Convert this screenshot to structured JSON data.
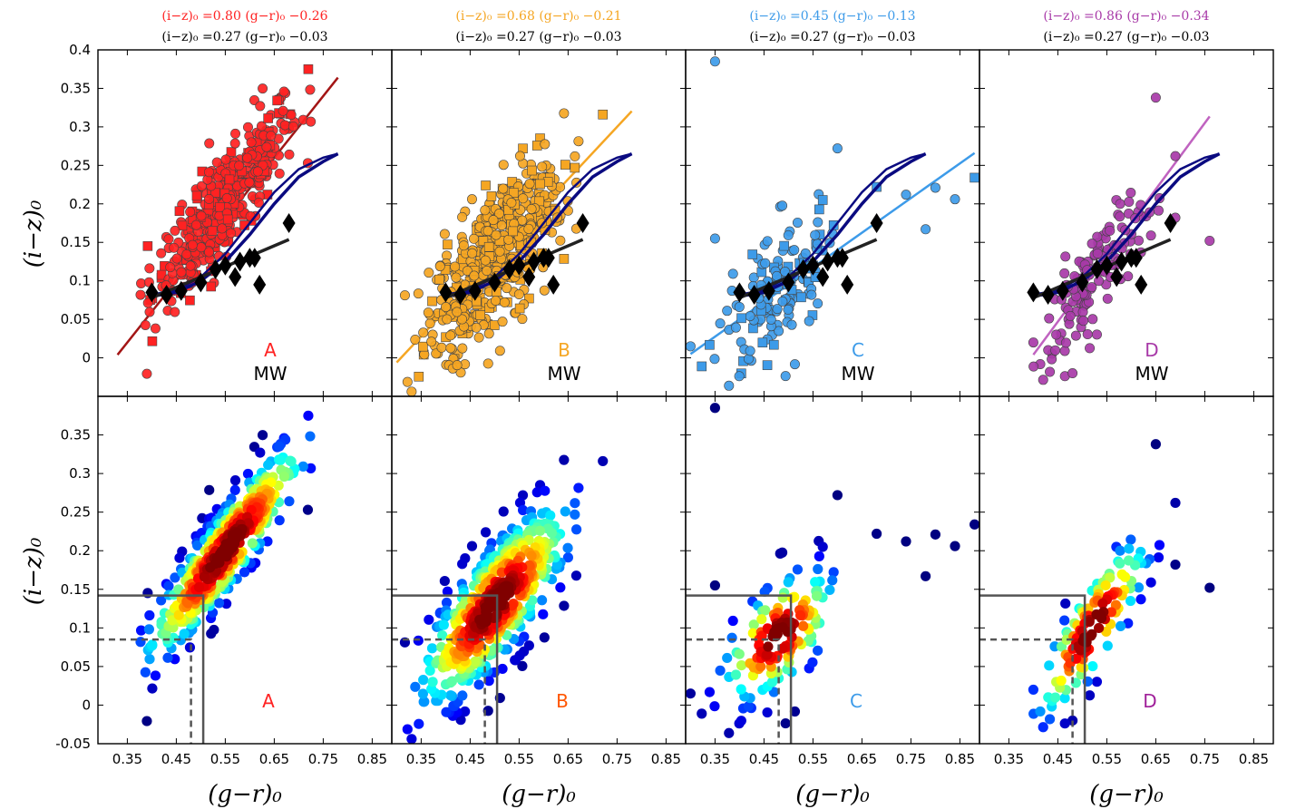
{
  "chart_data": {
    "type": "scatter",
    "x_axis": {
      "label": "(g−r)₀",
      "ticks": [
        0.35,
        0.45,
        0.55,
        0.65,
        0.75,
        0.85
      ],
      "tick_labels": [
        "0.35",
        "0.45",
        "0.55",
        "0.65",
        "0.75",
        "0.85"
      ],
      "xlim": [
        0.29,
        0.89
      ]
    },
    "y_axis": {
      "label": "(i−z)₀",
      "top_ticks": [
        0,
        0.05,
        0.1,
        0.15,
        0.2,
        0.25,
        0.3,
        0.35,
        0.4
      ],
      "top_tick_labels": [
        "0",
        "0.05",
        "0.1",
        "0.15",
        "0.2",
        "0.25",
        "0.3",
        "0.35",
        "0.4"
      ],
      "bottom_ticks": [
        -0.05,
        0,
        0.05,
        0.1,
        0.15,
        0.2,
        0.25,
        0.3,
        0.35
      ],
      "bottom_tick_labels": [
        "-0.05",
        "0",
        "0.05",
        "0.1",
        "0.15",
        "0.2",
        "0.25",
        "0.3",
        "0.35"
      ],
      "ylim_top": [
        -0.05,
        0.4
      ],
      "ylim_bottom": [
        -0.05,
        0.4
      ]
    },
    "mw_label": "MW",
    "mw_fit": {
      "slope": 0.27,
      "intercept": -0.03,
      "x_range": [
        0.4,
        0.68
      ]
    },
    "mw_diamonds": [
      {
        "x": 0.4,
        "y": 0.085
      },
      {
        "x": 0.43,
        "y": 0.082
      },
      {
        "x": 0.46,
        "y": 0.087
      },
      {
        "x": 0.5,
        "y": 0.098
      },
      {
        "x": 0.53,
        "y": 0.115
      },
      {
        "x": 0.55,
        "y": 0.12
      },
      {
        "x": 0.57,
        "y": 0.105
      },
      {
        "x": 0.58,
        "y": 0.125
      },
      {
        "x": 0.6,
        "y": 0.13
      },
      {
        "x": 0.61,
        "y": 0.13
      },
      {
        "x": 0.62,
        "y": 0.095
      },
      {
        "x": 0.68,
        "y": 0.175
      }
    ],
    "mw_tracks": [
      {
        "name": "",
        "points": [
          [
            0.4,
            0.08
          ],
          [
            0.45,
            0.085
          ],
          [
            0.5,
            0.1
          ],
          [
            0.55,
            0.125
          ],
          [
            0.6,
            0.16
          ],
          [
            0.65,
            0.2
          ],
          [
            0.7,
            0.235
          ],
          [
            0.75,
            0.255
          ],
          [
            0.78,
            0.265
          ]
        ]
      },
      {
        "name": "",
        "points": [
          [
            0.4,
            0.082
          ],
          [
            0.45,
            0.088
          ],
          [
            0.5,
            0.105
          ],
          [
            0.55,
            0.135
          ],
          [
            0.6,
            0.175
          ],
          [
            0.65,
            0.215
          ],
          [
            0.7,
            0.245
          ],
          [
            0.75,
            0.26
          ],
          [
            0.78,
            0.265
          ]
        ]
      }
    ],
    "solid_cut": {
      "x": 0.505,
      "y": 0.142
    },
    "dashed_cut": {
      "x": 0.48,
      "y": 0.085
    },
    "panels": [
      {
        "letter": "A",
        "color": "#ff2222",
        "eq_line1": "(i−z)₀ =0.80 (g−r)₀ −0.26",
        "eq_line2": "(i−z)₀ =0.27 (g−r)₀ −0.03",
        "fit": {
          "slope": 0.8,
          "intercept": -0.26,
          "x_range": [
            0.33,
            0.78
          ],
          "color": "#a31515"
        },
        "cloud": {
          "cx": 0.55,
          "cy": 0.2,
          "spread_x": 0.075,
          "slope": 0.8,
          "scatter": 0.032,
          "n": 420,
          "extent": [
            0.36,
            0.76
          ],
          "marker_mix": "circle+square"
        },
        "letter_color_bottom": "#ff2222"
      },
      {
        "letter": "B",
        "color": "#f5a623",
        "eq_line1": "(i−z)₀ =0.68 (g−r)₀ −0.21",
        "eq_line2": "(i−z)₀ =0.27 (g−r)₀ −0.03",
        "fit": {
          "slope": 0.68,
          "intercept": -0.21,
          "x_range": [
            0.3,
            0.78
          ],
          "color": "#f5a623"
        },
        "cloud": {
          "cx": 0.5,
          "cy": 0.13,
          "spread_x": 0.07,
          "slope": 0.68,
          "scatter": 0.045,
          "n": 520,
          "extent": [
            0.3,
            0.8
          ],
          "marker_mix": "circle+square"
        },
        "letter_color_bottom": "#ff5500"
      },
      {
        "letter": "C",
        "color": "#3d9be9",
        "eq_line1": "(i−z)₀ =0.45 (g−r)₀ −0.13",
        "eq_line2": "(i−z)₀ =0.27 (g−r)₀ −0.03",
        "fit": {
          "slope": 0.45,
          "intercept": -0.13,
          "x_range": [
            0.3,
            0.88
          ],
          "color": "#3d9be9"
        },
        "cloud": {
          "cx": 0.48,
          "cy": 0.09,
          "spread_x": 0.05,
          "slope": 0.45,
          "scatter": 0.04,
          "n": 150,
          "extent": [
            0.3,
            0.88
          ],
          "marker_mix": "circle+square"
        },
        "extra_points": [
          [
            0.35,
            0.385
          ],
          [
            0.6,
            0.272
          ],
          [
            0.68,
            0.222
          ],
          [
            0.74,
            0.212
          ],
          [
            0.8,
            0.221
          ],
          [
            0.84,
            0.206
          ],
          [
            0.88,
            0.234
          ],
          [
            0.78,
            0.167
          ],
          [
            0.3,
            0.015
          ],
          [
            0.35,
            0.155
          ],
          [
            0.57,
            0.205
          ]
        ],
        "letter_color_bottom": "#3d9be9"
      },
      {
        "letter": "D",
        "color": "#a83aa8",
        "eq_line1": "(i−z)₀ =0.86 (g−r)₀ −0.34",
        "eq_line2": "(i−z)₀ =0.27 (g−r)₀ −0.03",
        "fit": {
          "slope": 0.86,
          "intercept": -0.34,
          "x_range": [
            0.4,
            0.76
          ],
          "color": "#c063c0"
        },
        "cloud": {
          "cx": 0.52,
          "cy": 0.1,
          "spread_x": 0.05,
          "slope": 0.86,
          "scatter": 0.035,
          "n": 130,
          "extent": [
            0.38,
            0.76
          ],
          "marker_mix": "circle"
        },
        "extra_points": [
          [
            0.65,
            0.338
          ],
          [
            0.76,
            0.152
          ],
          [
            0.48,
            -0.02
          ],
          [
            0.69,
            0.262
          ],
          [
            0.69,
            0.182
          ],
          [
            0.4,
            0.02
          ]
        ],
        "letter_color_bottom": "#a0209a"
      }
    ]
  }
}
